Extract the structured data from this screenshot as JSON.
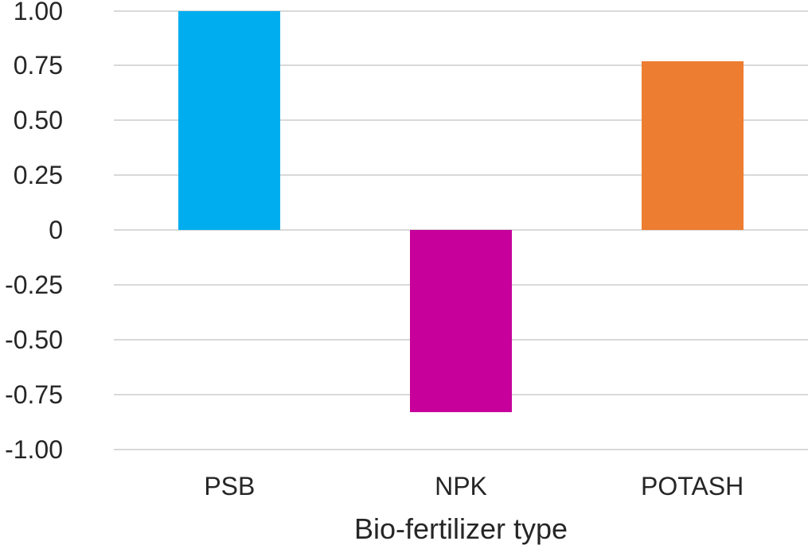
{
  "chart_data": {
    "type": "bar",
    "title": "",
    "xlabel": "Bio-fertilizer type",
    "ylabel": "",
    "categories": [
      "PSB",
      "NPK",
      "POTASH"
    ],
    "values": [
      1.0,
      -0.83,
      0.77
    ],
    "bar_colors": [
      "#00AEEF",
      "#C7009B",
      "#ED7D31"
    ],
    "ylim": [
      -1.0,
      1.0
    ],
    "yticks": [
      {
        "value": 1.0,
        "label": "1.00"
      },
      {
        "value": 0.75,
        "label": "0.75"
      },
      {
        "value": 0.5,
        "label": "0.50"
      },
      {
        "value": 0.25,
        "label": "0.25"
      },
      {
        "value": 0.0,
        "label": "0"
      },
      {
        "value": -0.25,
        "label": "-0.25"
      },
      {
        "value": -0.5,
        "label": "-0.50"
      },
      {
        "value": -0.75,
        "label": "-0.75"
      },
      {
        "value": -1.0,
        "label": "-1.00"
      }
    ],
    "grid": true,
    "legend": "none",
    "colors": {
      "gridline": "#D9D9D9",
      "text": "#262626",
      "background": "#FFFFFF"
    }
  }
}
